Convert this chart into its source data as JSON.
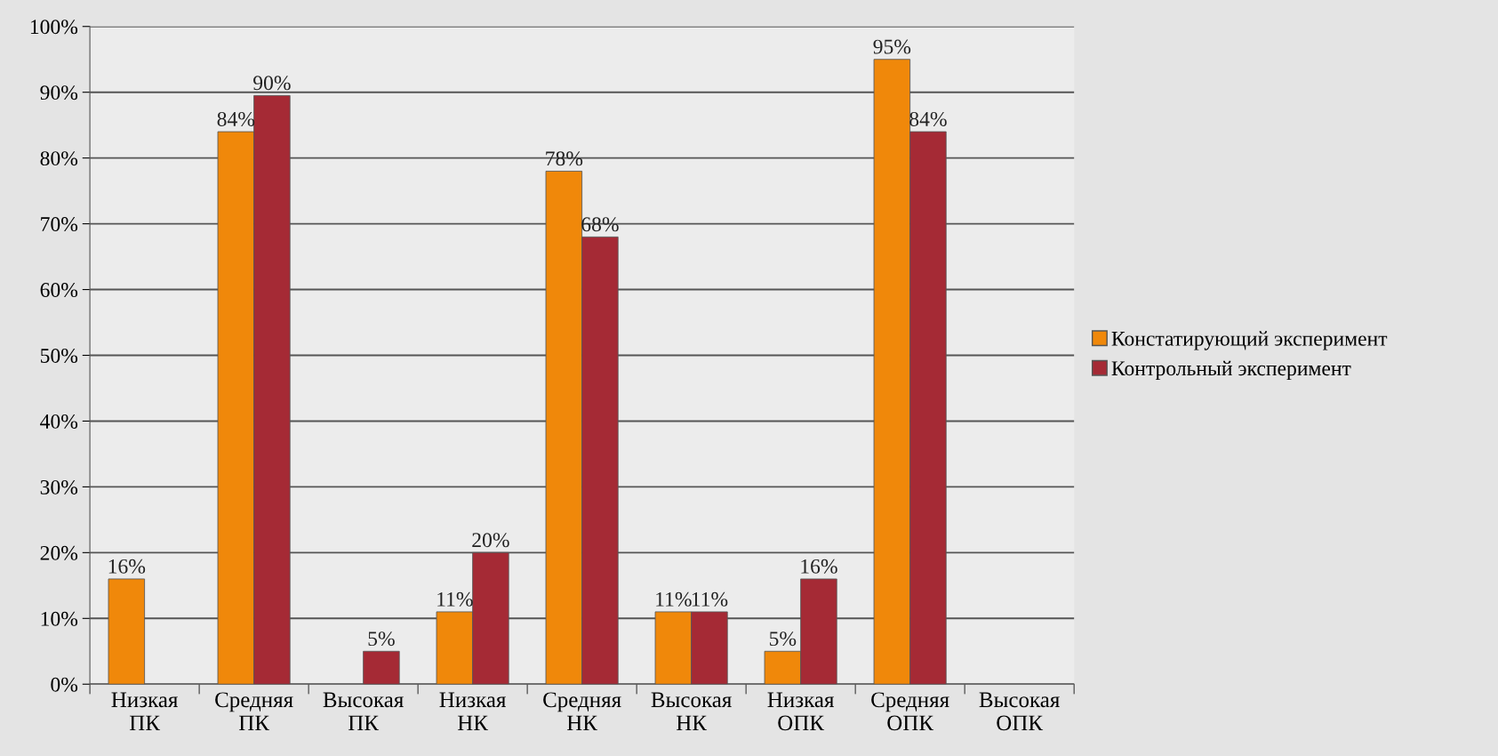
{
  "chart_data": {
    "type": "bar",
    "categories": [
      "Низкая\nПК",
      "Средняя\nПК",
      "Высокая\nПК",
      "Низкая\nНК",
      "Средняя\nНК",
      "Высокая\nНК",
      "Низкая\nОПК",
      "Средняя\nОПК",
      "Высокая\nОПК"
    ],
    "series": [
      {
        "name": "Констатирующий эксперимент",
        "color": "#f0880a",
        "values": [
          16,
          84,
          null,
          11,
          78,
          11,
          5,
          95,
          null
        ],
        "value_labels": [
          "16%",
          "84%",
          null,
          "11%",
          "78%",
          "11%",
          "5%",
          "95%",
          null
        ]
      },
      {
        "name": "Контрольный эксперимент",
        "color": "#a52a35",
        "values": [
          null,
          89.5,
          5,
          20,
          68,
          11,
          16,
          84,
          null
        ],
        "value_labels": [
          null,
          "90%",
          "5%",
          "20%",
          "68%",
          "11%",
          "16%",
          "84%",
          null
        ]
      }
    ],
    "ylim": [
      0,
      100
    ],
    "yticks": [
      {
        "value": 0,
        "label": "0%"
      },
      {
        "value": 10,
        "label": "10%"
      },
      {
        "value": 20,
        "label": "20%"
      },
      {
        "value": 30,
        "label": "30%"
      },
      {
        "value": 40,
        "label": "40%"
      },
      {
        "value": 50,
        "label": "50%"
      },
      {
        "value": 60,
        "label": "60%"
      },
      {
        "value": 70,
        "label": "70%"
      },
      {
        "value": 80,
        "label": "80%"
      },
      {
        "value": 90,
        "label": "90%"
      },
      {
        "value": 100,
        "label": "100%"
      }
    ],
    "grid": "y",
    "legend": "right"
  }
}
